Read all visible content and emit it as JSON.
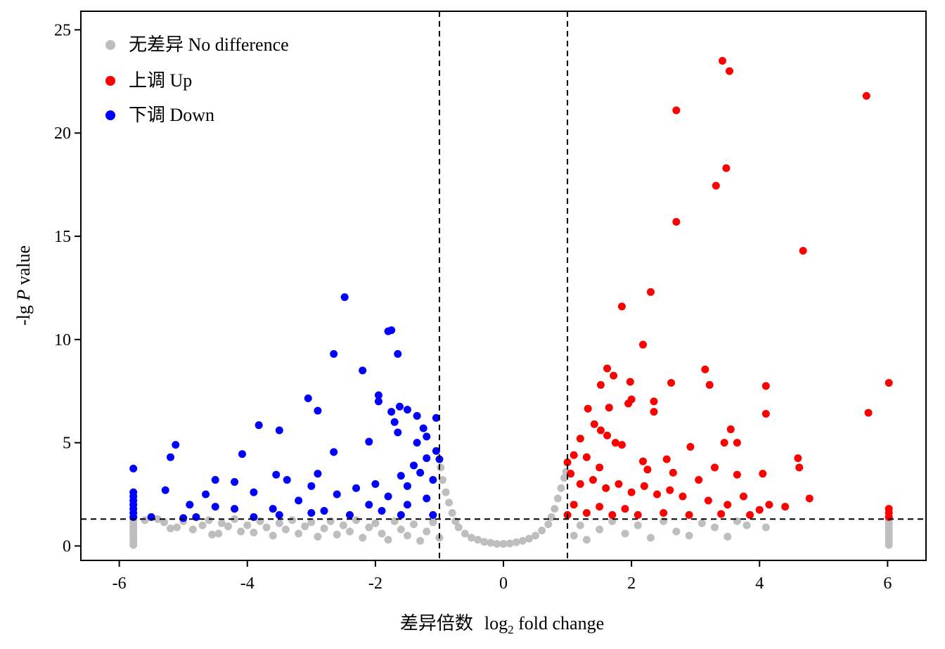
{
  "chart_data": {
    "type": "scatter",
    "title": "",
    "xlabel": {
      "cn": "差异倍数",
      "prefix": "log",
      "sub": "2",
      "suffix": " fold change"
    },
    "ylabel": {
      "prefix": "-lg ",
      "italic": "P",
      "suffix": " value"
    },
    "xlim": [
      -6.6,
      6.6
    ],
    "ylim": [
      -0.7,
      25.9
    ],
    "xticks": [
      -6,
      -4,
      -2,
      0,
      2,
      4,
      6
    ],
    "xtick_labels": [
      "-6",
      "-4",
      "-2",
      "0",
      "2",
      "4",
      "6"
    ],
    "yticks": [
      0,
      5,
      10,
      15,
      20,
      25
    ],
    "ytick_labels": [
      "0",
      "5",
      "10",
      "15",
      "20",
      "25"
    ],
    "grid": false,
    "legend_position": "top-left",
    "threshold_lines": {
      "vertical": [
        -1,
        1
      ],
      "horizontal": 1.3
    },
    "colors": {
      "none": "#bebebe",
      "up": "#ff0000",
      "down": "#0000ff"
    },
    "series": [
      {
        "name": "无差异 No difference",
        "key": "none",
        "points": [
          [
            -5.78,
            0.05
          ],
          [
            -5.78,
            0.2
          ],
          [
            -5.78,
            0.35
          ],
          [
            -5.78,
            0.5
          ],
          [
            -5.78,
            0.65
          ],
          [
            -5.78,
            0.8
          ],
          [
            -5.78,
            0.95
          ],
          [
            -5.78,
            1.1
          ],
          [
            -5.78,
            1.25
          ],
          [
            -5.6,
            1.25
          ],
          [
            -5.4,
            1.3
          ],
          [
            -5.3,
            1.15
          ],
          [
            -5.2,
            0.85
          ],
          [
            -5.1,
            0.9
          ],
          [
            -5.0,
            1.2
          ],
          [
            -4.85,
            0.8
          ],
          [
            -4.7,
            1.0
          ],
          [
            -4.6,
            1.25
          ],
          [
            -4.55,
            0.55
          ],
          [
            -4.45,
            0.6
          ],
          [
            -4.4,
            1.1
          ],
          [
            -4.3,
            0.95
          ],
          [
            -4.2,
            1.3
          ],
          [
            -4.1,
            0.7
          ],
          [
            -4.0,
            1.0
          ],
          [
            -3.9,
            0.65
          ],
          [
            -3.8,
            1.2
          ],
          [
            -3.7,
            0.9
          ],
          [
            -3.6,
            0.5
          ],
          [
            -3.5,
            1.1
          ],
          [
            -3.4,
            0.8
          ],
          [
            -3.3,
            1.25
          ],
          [
            -3.2,
            0.6
          ],
          [
            -3.1,
            0.95
          ],
          [
            -3.0,
            1.15
          ],
          [
            -2.9,
            0.45
          ],
          [
            -2.8,
            0.85
          ],
          [
            -2.7,
            1.2
          ],
          [
            -2.6,
            0.55
          ],
          [
            -2.5,
            1.0
          ],
          [
            -2.4,
            0.7
          ],
          [
            -2.3,
            1.25
          ],
          [
            -2.2,
            0.4
          ],
          [
            -2.1,
            0.9
          ],
          [
            -2.0,
            1.1
          ],
          [
            -1.9,
            0.6
          ],
          [
            -1.8,
            0.3
          ],
          [
            -1.7,
            1.2
          ],
          [
            -1.6,
            0.8
          ],
          [
            -1.5,
            0.5
          ],
          [
            -1.4,
            1.05
          ],
          [
            -1.3,
            0.25
          ],
          [
            -1.2,
            0.7
          ],
          [
            -1.1,
            1.15
          ],
          [
            -1.0,
            0.4
          ],
          [
            -0.98,
            3.8
          ],
          [
            -0.95,
            3.2
          ],
          [
            -0.9,
            2.6
          ],
          [
            -0.85,
            2.1
          ],
          [
            -0.8,
            1.6
          ],
          [
            -0.75,
            1.2
          ],
          [
            -0.7,
            0.9
          ],
          [
            -0.6,
            0.6
          ],
          [
            -0.5,
            0.4
          ],
          [
            -0.4,
            0.3
          ],
          [
            -0.3,
            0.2
          ],
          [
            -0.2,
            0.15
          ],
          [
            -0.1,
            0.1
          ],
          [
            0.0,
            0.1
          ],
          [
            0.1,
            0.12
          ],
          [
            0.2,
            0.18
          ],
          [
            0.3,
            0.25
          ],
          [
            0.4,
            0.35
          ],
          [
            0.5,
            0.5
          ],
          [
            0.6,
            0.75
          ],
          [
            0.7,
            1.05
          ],
          [
            0.75,
            1.4
          ],
          [
            0.8,
            1.8
          ],
          [
            0.85,
            2.3
          ],
          [
            0.9,
            2.8
          ],
          [
            0.95,
            3.3
          ],
          [
            0.98,
            3.6
          ],
          [
            1.1,
            0.5
          ],
          [
            1.2,
            1.0
          ],
          [
            1.3,
            0.3
          ],
          [
            1.5,
            0.8
          ],
          [
            1.7,
            1.2
          ],
          [
            1.9,
            0.6
          ],
          [
            2.1,
            1.0
          ],
          [
            2.3,
            0.4
          ],
          [
            2.5,
            1.2
          ],
          [
            2.7,
            0.7
          ],
          [
            2.9,
            0.5
          ],
          [
            3.1,
            1.1
          ],
          [
            3.3,
            0.9
          ],
          [
            3.5,
            0.45
          ],
          [
            3.65,
            1.2
          ],
          [
            3.8,
            1.0
          ],
          [
            4.1,
            0.9
          ],
          [
            6.02,
            0.05
          ],
          [
            6.02,
            0.2
          ],
          [
            6.02,
            0.35
          ],
          [
            6.02,
            0.5
          ],
          [
            6.02,
            0.65
          ],
          [
            6.02,
            0.8
          ],
          [
            6.02,
            0.95
          ],
          [
            6.02,
            1.1
          ],
          [
            6.02,
            1.25
          ]
        ]
      },
      {
        "name": "上调 Up",
        "key": "up",
        "points": [
          [
            3.42,
            23.5
          ],
          [
            3.53,
            23.0
          ],
          [
            5.67,
            21.8
          ],
          [
            2.7,
            21.1
          ],
          [
            3.48,
            18.3
          ],
          [
            3.32,
            17.45
          ],
          [
            2.7,
            15.7
          ],
          [
            4.68,
            14.3
          ],
          [
            2.3,
            12.3
          ],
          [
            1.85,
            11.6
          ],
          [
            2.18,
            9.75
          ],
          [
            1.62,
            8.6
          ],
          [
            3.15,
            8.55
          ],
          [
            1.72,
            8.25
          ],
          [
            1.98,
            7.95
          ],
          [
            2.62,
            7.9
          ],
          [
            3.22,
            7.8
          ],
          [
            1.52,
            7.8
          ],
          [
            4.1,
            7.75
          ],
          [
            6.02,
            7.9
          ],
          [
            2.0,
            7.1
          ],
          [
            2.35,
            7.0
          ],
          [
            1.95,
            6.9
          ],
          [
            1.32,
            6.65
          ],
          [
            1.65,
            6.7
          ],
          [
            5.7,
            6.45
          ],
          [
            2.35,
            6.5
          ],
          [
            4.1,
            6.4
          ],
          [
            1.42,
            5.9
          ],
          [
            3.55,
            5.65
          ],
          [
            1.52,
            5.6
          ],
          [
            1.62,
            5.35
          ],
          [
            1.2,
            5.2
          ],
          [
            1.75,
            5.0
          ],
          [
            3.45,
            5.0
          ],
          [
            3.65,
            5.0
          ],
          [
            1.85,
            4.9
          ],
          [
            2.92,
            4.8
          ],
          [
            1.1,
            4.4
          ],
          [
            1.3,
            4.3
          ],
          [
            2.18,
            4.1
          ],
          [
            2.55,
            4.2
          ],
          [
            4.6,
            4.25
          ],
          [
            1.0,
            4.05
          ],
          [
            1.5,
            3.8
          ],
          [
            2.25,
            3.7
          ],
          [
            3.3,
            3.8
          ],
          [
            4.62,
            3.8
          ],
          [
            2.65,
            3.55
          ],
          [
            3.65,
            3.45
          ],
          [
            4.05,
            3.5
          ],
          [
            1.05,
            3.5
          ],
          [
            1.2,
            3.0
          ],
          [
            1.4,
            3.2
          ],
          [
            1.6,
            2.8
          ],
          [
            1.8,
            3.0
          ],
          [
            2.0,
            2.6
          ],
          [
            2.2,
            2.9
          ],
          [
            2.4,
            2.5
          ],
          [
            2.6,
            2.7
          ],
          [
            2.8,
            2.4
          ],
          [
            3.05,
            3.2
          ],
          [
            3.2,
            2.2
          ],
          [
            3.5,
            2.0
          ],
          [
            3.75,
            2.4
          ],
          [
            4.15,
            2.0
          ],
          [
            4.4,
            1.9
          ],
          [
            4.78,
            2.3
          ],
          [
            1.0,
            1.5
          ],
          [
            1.1,
            2.0
          ],
          [
            1.3,
            1.6
          ],
          [
            1.5,
            1.9
          ],
          [
            1.7,
            1.5
          ],
          [
            1.9,
            1.8
          ],
          [
            2.1,
            1.5
          ],
          [
            2.5,
            1.6
          ],
          [
            2.9,
            1.5
          ],
          [
            3.4,
            1.55
          ],
          [
            3.85,
            1.5
          ],
          [
            4.0,
            1.75
          ],
          [
            6.02,
            1.4
          ],
          [
            6.02,
            1.6
          ],
          [
            6.02,
            1.8
          ]
        ]
      },
      {
        "name": "下调 Down",
        "key": "down",
        "points": [
          [
            -2.48,
            12.05
          ],
          [
            -1.75,
            10.45
          ],
          [
            -1.8,
            10.4
          ],
          [
            -2.65,
            9.3
          ],
          [
            -1.65,
            9.3
          ],
          [
            -2.2,
            8.5
          ],
          [
            -1.95,
            7.3
          ],
          [
            -3.05,
            7.15
          ],
          [
            -1.95,
            7.0
          ],
          [
            -1.62,
            6.75
          ],
          [
            -1.5,
            6.6
          ],
          [
            -1.75,
            6.5
          ],
          [
            -2.9,
            6.55
          ],
          [
            -1.35,
            6.3
          ],
          [
            -1.05,
            6.2
          ],
          [
            -1.7,
            6.0
          ],
          [
            -3.82,
            5.85
          ],
          [
            -1.25,
            5.7
          ],
          [
            -1.65,
            5.5
          ],
          [
            -3.5,
            5.6
          ],
          [
            -1.2,
            5.3
          ],
          [
            -1.35,
            5.0
          ],
          [
            -2.1,
            5.05
          ],
          [
            -5.12,
            4.9
          ],
          [
            -1.05,
            4.6
          ],
          [
            -2.65,
            4.55
          ],
          [
            -4.08,
            4.45
          ],
          [
            -5.2,
            4.3
          ],
          [
            -1.2,
            4.25
          ],
          [
            -1.0,
            4.2
          ],
          [
            -1.4,
            3.9
          ],
          [
            -5.78,
            3.75
          ],
          [
            -2.9,
            3.5
          ],
          [
            -3.55,
            3.45
          ],
          [
            -1.3,
            3.55
          ],
          [
            -1.6,
            3.4
          ],
          [
            -1.1,
            3.2
          ],
          [
            -3.38,
            3.2
          ],
          [
            -4.5,
            3.2
          ],
          [
            -4.2,
            3.1
          ],
          [
            -2.0,
            3.0
          ],
          [
            -2.3,
            2.8
          ],
          [
            -3.0,
            2.9
          ],
          [
            -1.5,
            2.9
          ],
          [
            -5.28,
            2.7
          ],
          [
            -3.9,
            2.6
          ],
          [
            -2.6,
            2.5
          ],
          [
            -4.65,
            2.5
          ],
          [
            -1.8,
            2.4
          ],
          [
            -3.2,
            2.2
          ],
          [
            -1.2,
            2.3
          ],
          [
            -4.9,
            2.0
          ],
          [
            -2.1,
            2.0
          ],
          [
            -4.5,
            1.9
          ],
          [
            -1.5,
            2.0
          ],
          [
            -3.6,
            1.8
          ],
          [
            -2.8,
            1.7
          ],
          [
            -1.9,
            1.7
          ],
          [
            -4.2,
            1.8
          ],
          [
            -3.0,
            1.6
          ],
          [
            -5.78,
            2.6
          ],
          [
            -5.78,
            2.4
          ],
          [
            -5.78,
            2.2
          ],
          [
            -5.78,
            2.0
          ],
          [
            -5.78,
            1.8
          ],
          [
            -5.78,
            1.6
          ],
          [
            -5.78,
            1.4
          ],
          [
            -2.4,
            1.5
          ],
          [
            -1.1,
            1.5
          ],
          [
            -1.6,
            1.5
          ],
          [
            -3.5,
            1.5
          ],
          [
            -4.8,
            1.4
          ],
          [
            -5.0,
            1.35
          ],
          [
            -5.5,
            1.4
          ],
          [
            -3.9,
            1.4
          ]
        ]
      }
    ]
  }
}
